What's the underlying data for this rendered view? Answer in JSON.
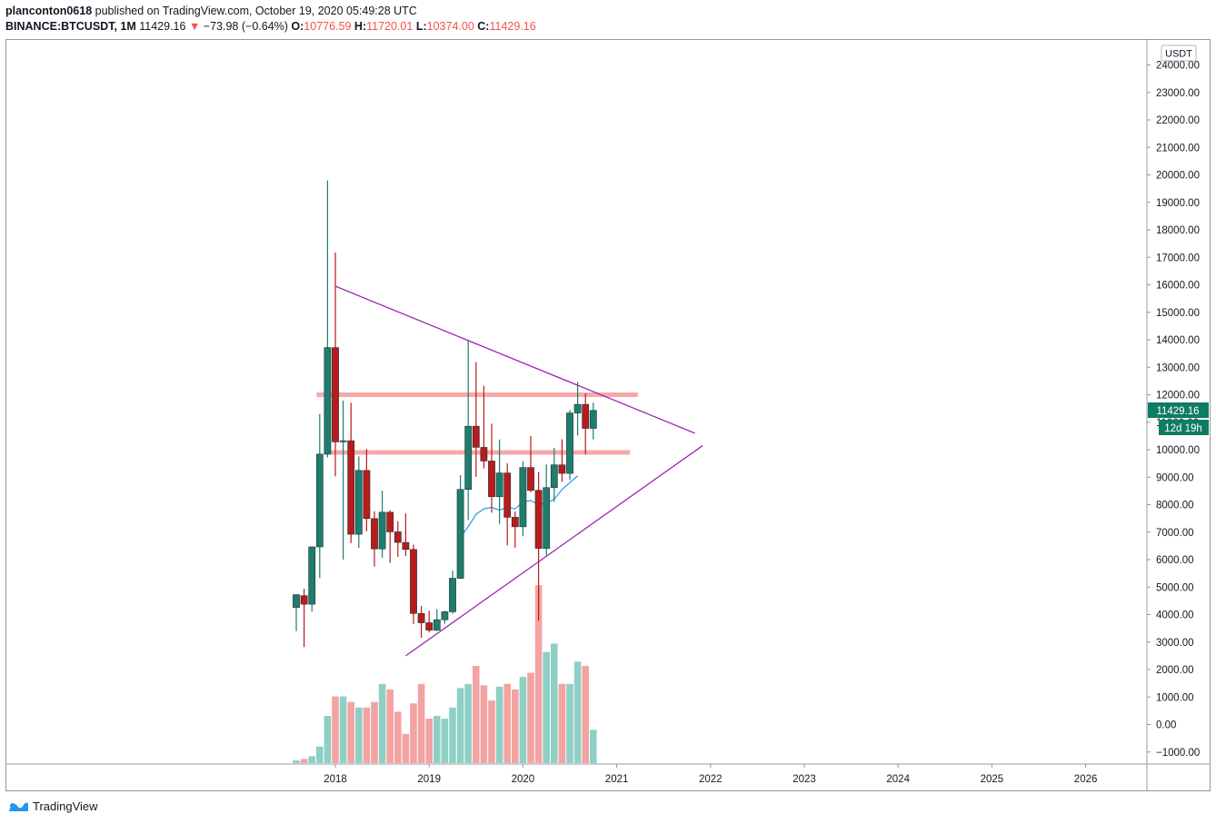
{
  "header": {
    "user": "planconton0618",
    "published": "published on TradingView.com, October 19, 2020 05:49:28 UTC",
    "symbol": "BINANCE:BTCUSDT, 1M",
    "last": "11429.16",
    "change_arrow": "▼",
    "change": "−73.98 (−0.64%)",
    "o_label": "O:",
    "o": "10776.59",
    "h_label": "H:",
    "h": "11720.01",
    "l_label": "L:",
    "l": "10374.00",
    "c_label": "C:",
    "c": "11429.16"
  },
  "axis": {
    "currency": "USDT",
    "price_tag": "11429.16",
    "countdown": "12d 19h"
  },
  "footer": {
    "brand": "TradingView",
    "logo_icon": "tradingview-logo-icon"
  },
  "colors": {
    "up": "#1e7d6d",
    "down": "#b71c1c",
    "vol_up": "#8fd0c5",
    "vol_down": "#f4a3a3",
    "triangle": "#9c27b0",
    "sr_zone": "#f7a8a8",
    "ma": "#2196f3",
    "tag": "#0e7c62"
  },
  "chart_data": {
    "type": "candlestick",
    "timeframe": "1M",
    "y_ticks": [
      24000,
      23000,
      22000,
      21000,
      20000,
      19000,
      18000,
      17000,
      16000,
      15000,
      14000,
      13000,
      12000,
      11000,
      10000,
      9000,
      8000,
      7000,
      6000,
      5000,
      4000,
      3000,
      2000,
      1000,
      0,
      -1000
    ],
    "y_tick_labels": [
      "24000.00",
      "23000.00",
      "22000.00",
      "21000.00",
      "20000.00",
      "19000.00",
      "18000.00",
      "17000.00",
      "16000.00",
      "15000.00",
      "14000.00",
      "13000.00",
      "12000.00",
      "11000.00",
      "10000.00",
      "9000.00",
      "8000.00",
      "7000.00",
      "6000.00",
      "5000.00",
      "4000.00",
      "3000.00",
      "2000.00",
      "1000.00",
      "0.00",
      "−1000.00"
    ],
    "x_ticks": [
      "2018",
      "2019",
      "2020",
      "2021",
      "2022",
      "2023",
      "2024",
      "2025",
      "2026"
    ],
    "x_tick_dates": [
      "2018-01",
      "2019-01",
      "2020-01",
      "2021-01",
      "2022-01",
      "2023-01",
      "2024-01",
      "2025-01",
      "2026-01"
    ],
    "candles": [
      {
        "t": "2017-08",
        "o": 4261,
        "h": 4745,
        "l": 3400,
        "c": 4724
      },
      {
        "t": "2017-09",
        "o": 4689,
        "h": 4939,
        "l": 2817,
        "c": 4378
      },
      {
        "t": "2017-10",
        "o": 4378,
        "h": 6470,
        "l": 4110,
        "c": 6463
      },
      {
        "t": "2017-11",
        "o": 6463,
        "h": 11300,
        "l": 5325,
        "c": 9838
      },
      {
        "t": "2017-12",
        "o": 9838,
        "h": 19798,
        "l": 9722,
        "c": 13716
      },
      {
        "t": "2018-01",
        "o": 13716,
        "h": 17176,
        "l": 9035,
        "c": 10285
      },
      {
        "t": "2018-02",
        "o": 10285,
        "h": 11786,
        "l": 6000,
        "c": 10326
      },
      {
        "t": "2018-03",
        "o": 10326,
        "h": 11710,
        "l": 6600,
        "c": 6923
      },
      {
        "t": "2018-04",
        "o": 6923,
        "h": 9759,
        "l": 6430,
        "c": 9246
      },
      {
        "t": "2018-05",
        "o": 9246,
        "h": 10020,
        "l": 7032,
        "c": 7494
      },
      {
        "t": "2018-06",
        "o": 7494,
        "h": 7760,
        "l": 5750,
        "c": 6391
      },
      {
        "t": "2018-07",
        "o": 6391,
        "h": 8507,
        "l": 6070,
        "c": 7725
      },
      {
        "t": "2018-08",
        "o": 7725,
        "h": 7800,
        "l": 5880,
        "c": 7011
      },
      {
        "t": "2018-09",
        "o": 7011,
        "h": 7400,
        "l": 6100,
        "c": 6626
      },
      {
        "t": "2018-10",
        "o": 6626,
        "h": 7680,
        "l": 6130,
        "c": 6371
      },
      {
        "t": "2018-11",
        "o": 6371,
        "h": 6545,
        "l": 3652,
        "c": 4041
      },
      {
        "t": "2018-12",
        "o": 4041,
        "h": 4315,
        "l": 3157,
        "c": 3702
      },
      {
        "t": "2019-01",
        "o": 3702,
        "h": 4140,
        "l": 3349,
        "c": 3434
      },
      {
        "t": "2019-02",
        "o": 3434,
        "h": 4198,
        "l": 3400,
        "c": 3814
      },
      {
        "t": "2019-03",
        "o": 3814,
        "h": 4140,
        "l": 3670,
        "c": 4103
      },
      {
        "t": "2019-04",
        "o": 4103,
        "h": 5600,
        "l": 4032,
        "c": 5321
      },
      {
        "t": "2019-05",
        "o": 5321,
        "h": 9074,
        "l": 5300,
        "c": 8555
      },
      {
        "t": "2019-06",
        "o": 8555,
        "h": 13970,
        "l": 7440,
        "c": 10854
      },
      {
        "t": "2019-07",
        "o": 10854,
        "h": 13180,
        "l": 9011,
        "c": 10085
      },
      {
        "t": "2019-08",
        "o": 10085,
        "h": 12325,
        "l": 9320,
        "c": 9588
      },
      {
        "t": "2019-09",
        "o": 9588,
        "h": 10950,
        "l": 7710,
        "c": 8289
      },
      {
        "t": "2019-10",
        "o": 8289,
        "h": 10370,
        "l": 7300,
        "c": 9152
      },
      {
        "t": "2019-11",
        "o": 9152,
        "h": 9505,
        "l": 6515,
        "c": 7541
      },
      {
        "t": "2019-12",
        "o": 7541,
        "h": 7750,
        "l": 6435,
        "c": 7195
      },
      {
        "t": "2020-01",
        "o": 7195,
        "h": 9578,
        "l": 6850,
        "c": 9352
      },
      {
        "t": "2020-02",
        "o": 9352,
        "h": 10500,
        "l": 8445,
        "c": 8523
      },
      {
        "t": "2020-03",
        "o": 8523,
        "h": 9188,
        "l": 3782,
        "c": 6410
      },
      {
        "t": "2020-04",
        "o": 6410,
        "h": 9468,
        "l": 6150,
        "c": 8620
      },
      {
        "t": "2020-05",
        "o": 8620,
        "h": 10067,
        "l": 8106,
        "c": 9448
      },
      {
        "t": "2020-06",
        "o": 9448,
        "h": 10380,
        "l": 8833,
        "c": 9138
      },
      {
        "t": "2020-07",
        "o": 9138,
        "h": 11444,
        "l": 8893,
        "c": 11335
      },
      {
        "t": "2020-08",
        "o": 11335,
        "h": 12468,
        "l": 10518,
        "c": 11649
      },
      {
        "t": "2020-09",
        "o": 11649,
        "h": 12050,
        "l": 9825,
        "c": 10776
      },
      {
        "t": "2020-10",
        "o": 10776,
        "h": 11720,
        "l": 10374,
        "c": 11429
      }
    ],
    "volume_relative": [
      0.02,
      0.03,
      0.05,
      0.12,
      0.34,
      0.48,
      0.48,
      0.44,
      0.4,
      0.4,
      0.44,
      0.57,
      0.53,
      0.37,
      0.21,
      0.43,
      0.57,
      0.32,
      0.34,
      0.32,
      0.4,
      0.54,
      0.57,
      0.7,
      0.56,
      0.45,
      0.55,
      0.57,
      0.53,
      0.62,
      0.65,
      1.28,
      0.8,
      0.86,
      0.57,
      0.57,
      0.73,
      0.7,
      0.24
    ],
    "ma": [
      {
        "t": "2019-05",
        "v": 6800
      },
      {
        "t": "2019-06",
        "v": 7200
      },
      {
        "t": "2019-07",
        "v": 7650
      },
      {
        "t": "2019-08",
        "v": 7850
      },
      {
        "t": "2019-09",
        "v": 7900
      },
      {
        "t": "2019-10",
        "v": 7800
      },
      {
        "t": "2019-11",
        "v": 7900
      },
      {
        "t": "2019-12",
        "v": 7850
      },
      {
        "t": "2020-01",
        "v": 8100
      },
      {
        "t": "2020-02",
        "v": 8150
      },
      {
        "t": "2020-03",
        "v": 8000
      },
      {
        "t": "2020-04",
        "v": 8050
      },
      {
        "t": "2020-05",
        "v": 8200
      },
      {
        "t": "2020-06",
        "v": 8550
      },
      {
        "t": "2020-07",
        "v": 8800
      },
      {
        "t": "2020-08",
        "v": 9050
      }
    ],
    "trendlines": [
      {
        "name": "upper",
        "from": {
          "t": "2018-01",
          "v": 15950
        },
        "to": {
          "t": "2021-11",
          "v": 10600
        }
      },
      {
        "name": "lower",
        "from": {
          "t": "2018-10",
          "v": 2500
        },
        "to": {
          "t": "2021-12",
          "v": 10150
        }
      }
    ],
    "zones": [
      {
        "from": "2017-12",
        "to": "2021-03",
        "v": 12000
      },
      {
        "from": "2018-01",
        "to": "2021-02",
        "v": 9900
      }
    ]
  }
}
